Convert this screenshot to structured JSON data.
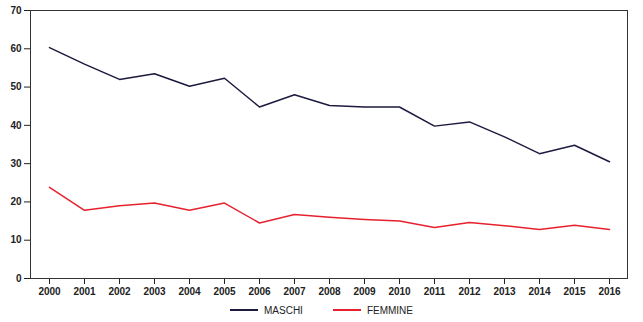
{
  "chart_data": {
    "type": "line",
    "categories": [
      "2000",
      "2001",
      "2002",
      "2003",
      "2004",
      "2005",
      "2006",
      "2007",
      "2008",
      "2009",
      "2010",
      "2011",
      "2012",
      "2013",
      "2014",
      "2015",
      "2016"
    ],
    "series": [
      {
        "name": "MASCHI",
        "color": "#1c1b3f",
        "values": [
          60.3,
          56.0,
          52.0,
          53.5,
          50.2,
          52.3,
          44.8,
          48.0,
          45.2,
          44.8,
          44.8,
          39.8,
          40.9,
          37.0,
          32.6,
          34.8,
          30.5
        ]
      },
      {
        "name": "FEMMINE",
        "color": "#e8212e",
        "values": [
          23.8,
          17.8,
          19.0,
          19.7,
          17.8,
          19.7,
          14.5,
          16.7,
          16.0,
          15.4,
          15.0,
          13.3,
          14.6,
          13.8,
          12.8,
          13.9,
          12.8
        ]
      }
    ],
    "ylim": [
      0,
      70
    ],
    "yticks": [
      0,
      10,
      20,
      30,
      40,
      50,
      60,
      70
    ],
    "grid": false,
    "legend": "bottom"
  }
}
